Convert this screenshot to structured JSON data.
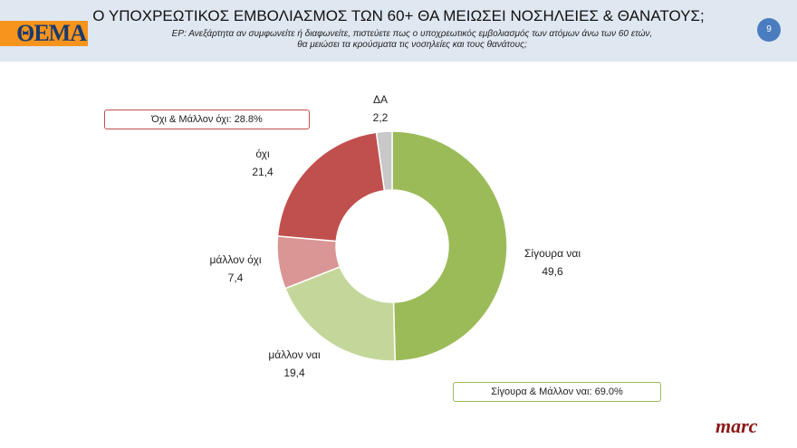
{
  "header": {
    "logo": "ΘΕΜΑ",
    "title": "Ο ΥΠΟΧΡΕΩΤΙΚΟΣ ΕΜΒΟΛΙΑΣΜΟΣ ΤΩΝ 60+ ΘΑ ΜΕΙΩΣΕΙ ΝΟΣΗΛΕΙΕΣ & ΘΑΝΑΤΟΥΣ;",
    "subtitle_line1": "ΕΡ: Ανεξάρτητα αν συμφωνείτε  ή διαφωνείτε, πιστεύετε πως  ο υποχρεωτικός εμβολιασμός των ατόμων άνω των 60 ετών,",
    "subtitle_line2": "θα μειώσει τα κρούσματα τις νοσηλείες και τους θανάτους;",
    "page_number": "9"
  },
  "chart_data": {
    "type": "pie",
    "donut": true,
    "categories": [
      "Σίγουρα ναι",
      "μάλλον ναι",
      "μάλλον όχι",
      "όχι",
      "ΔΑ"
    ],
    "values": [
      49.6,
      19.4,
      7.4,
      21.4,
      2.2
    ],
    "value_labels": [
      "49,6",
      "19,4",
      "7,4",
      "21,4",
      "2,2"
    ],
    "colors": [
      "#9bbb59",
      "#c4d79b",
      "#da9694",
      "#c0504d",
      "#c8c8c8"
    ],
    "annotations": [
      "Όχι & Μάλλον όχι: 28.8%",
      "Σίγουρα & Μάλλον ναι: 69.0%"
    ],
    "annotation_colors": [
      "#c0504d",
      "#9bbb59"
    ]
  },
  "footer": {
    "brand": "marc"
  }
}
